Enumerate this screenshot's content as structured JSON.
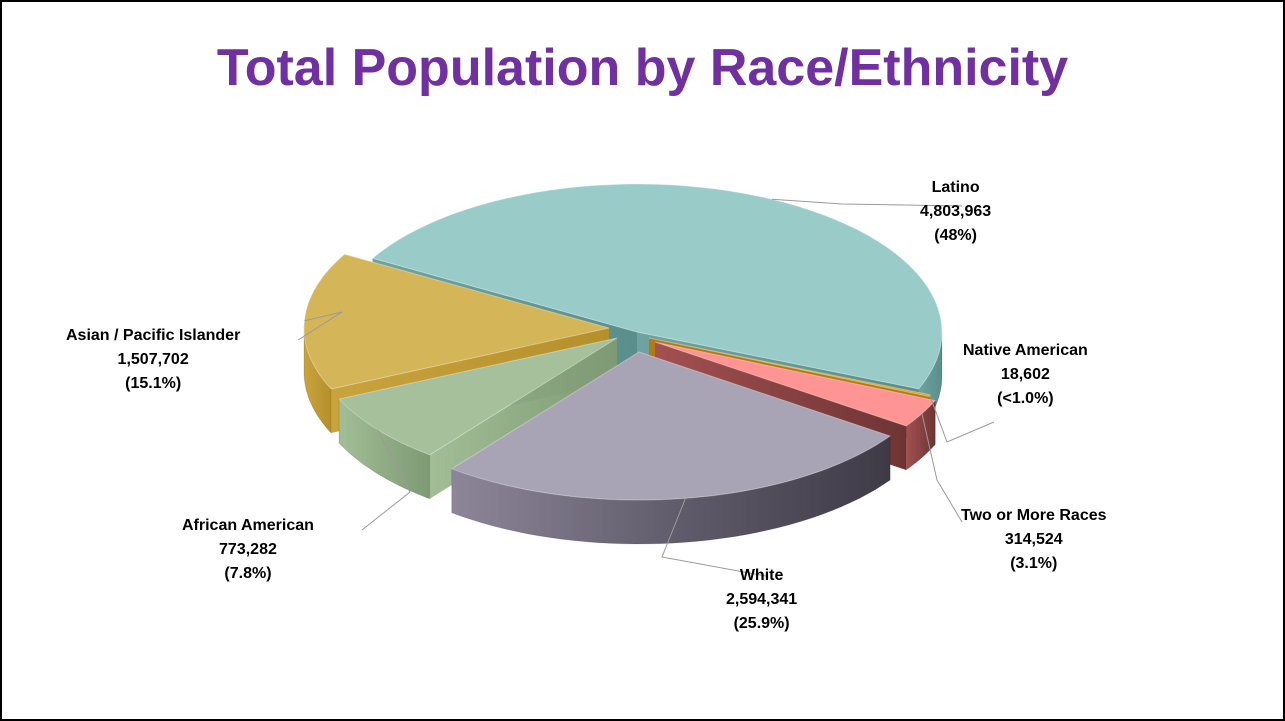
{
  "chart_data": {
    "type": "pie",
    "title": "Total Population by Race/Ethnicity",
    "style": "3d-exploded",
    "slices": [
      {
        "key": "latino",
        "name": "Latino",
        "value": 4803963,
        "value_label": "4,803,963",
        "pct_label": "(48%)",
        "color": "#99CCC8"
      },
      {
        "key": "native",
        "name": "Native American",
        "value": 18602,
        "value_label": "18,602",
        "pct_label": "(<1.0%)",
        "color": "#E0A020"
      },
      {
        "key": "two",
        "name": "Two or More Races",
        "value": 314524,
        "value_label": "314,524",
        "pct_label": "(3.1%)",
        "color": "#FF9494"
      },
      {
        "key": "white",
        "name": "White",
        "value": 2594341,
        "value_label": "2,594,341",
        "pct_label": "(25.9%)",
        "color": "#A9A3B6"
      },
      {
        "key": "african",
        "name": "African American",
        "value": 773282,
        "value_label": "773,282",
        "pct_label": "(7.8%)",
        "color": "#A5C09A"
      },
      {
        "key": "asian",
        "name": "Asian / Pacific Islander",
        "value": 1507702,
        "value_label": "1,507,702",
        "pct_label": "(15.1%)",
        "color": "#D4B557"
      }
    ]
  }
}
